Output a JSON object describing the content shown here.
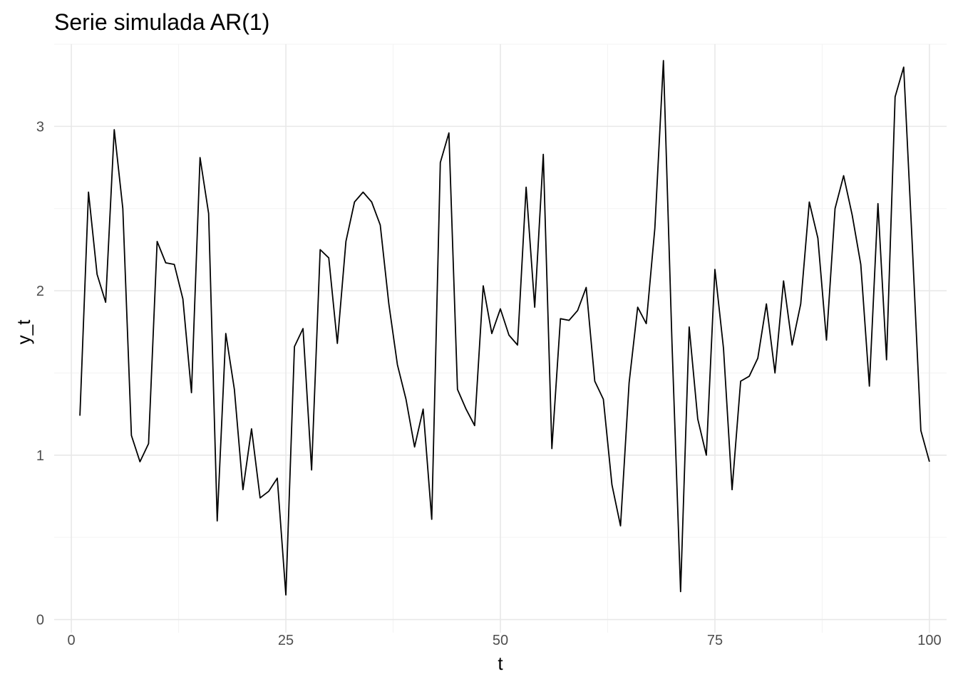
{
  "chart_data": {
    "type": "line",
    "title": "Serie simulada AR(1)",
    "xlabel": "t",
    "ylabel": "y_t",
    "xlim": [
      -2,
      102
    ],
    "ylim": [
      -0.08,
      3.5
    ],
    "x_ticks": [
      0,
      25,
      50,
      75,
      100
    ],
    "x_tick_labels": [
      "0",
      "25",
      "50",
      "75",
      "100"
    ],
    "y_ticks": [
      0,
      1,
      2,
      3
    ],
    "y_tick_labels": [
      "0",
      "1",
      "2",
      "3"
    ],
    "grid": true,
    "series": [
      {
        "color": "#000000",
        "x": [
          1,
          2,
          3,
          4,
          5,
          6,
          7,
          8,
          9,
          10,
          11,
          12,
          13,
          14,
          15,
          16,
          17,
          18,
          19,
          20,
          21,
          22,
          23,
          24,
          25,
          26,
          27,
          28,
          29,
          30,
          31,
          32,
          33,
          34,
          35,
          36,
          37,
          38,
          39,
          40,
          41,
          42,
          43,
          44,
          45,
          46,
          47,
          48,
          49,
          50,
          51,
          52,
          53,
          54,
          55,
          56,
          57,
          58,
          59,
          60,
          61,
          62,
          63,
          64,
          65,
          66,
          67,
          68,
          69,
          70,
          71,
          72,
          73,
          74,
          75,
          76,
          77,
          78,
          79,
          80,
          81,
          82,
          83,
          84,
          85,
          86,
          87,
          88,
          89,
          90,
          91,
          92,
          93,
          94,
          95,
          96,
          97,
          98,
          99,
          100
        ],
        "y": [
          1.24,
          2.6,
          2.1,
          1.93,
          2.98,
          2.5,
          1.12,
          0.96,
          1.07,
          2.3,
          2.17,
          2.16,
          1.95,
          1.38,
          2.81,
          2.47,
          0.6,
          1.74,
          1.4,
          0.79,
          1.16,
          0.74,
          0.78,
          0.86,
          0.15,
          1.66,
          1.77,
          0.91,
          2.25,
          2.2,
          1.68,
          2.3,
          2.54,
          2.6,
          2.54,
          2.4,
          1.92,
          1.55,
          1.34,
          1.05,
          1.28,
          0.61,
          2.78,
          2.96,
          1.4,
          1.28,
          1.18,
          2.03,
          1.74,
          1.89,
          1.73,
          1.67,
          2.63,
          1.9,
          2.83,
          1.04,
          1.83,
          1.82,
          1.88,
          2.02,
          1.45,
          1.34,
          0.82,
          0.57,
          1.44,
          1.9,
          1.8,
          2.38,
          3.4,
          1.68,
          0.17,
          1.78,
          1.22,
          1.0,
          2.13,
          1.65,
          0.79,
          1.45,
          1.48,
          1.59,
          1.92,
          1.5,
          2.06,
          1.67,
          1.92,
          2.54,
          2.32,
          1.7,
          2.5,
          2.7,
          2.46,
          2.16,
          1.42,
          2.53,
          1.58,
          3.18,
          3.36,
          2.28,
          1.15,
          0.96
        ]
      }
    ]
  }
}
